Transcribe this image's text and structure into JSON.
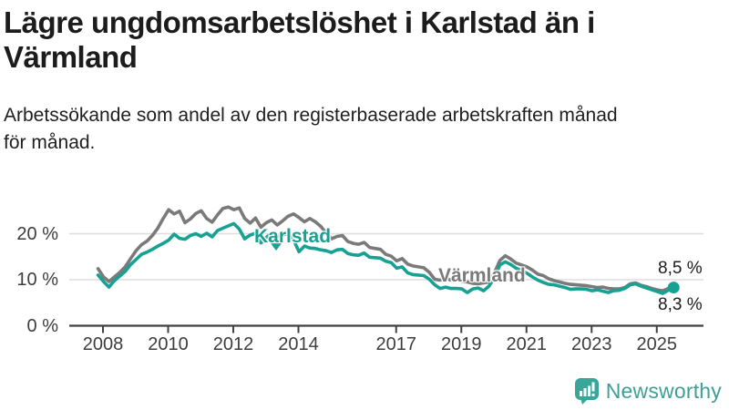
{
  "header": {
    "title": "Lägre ungdomsarbetslöshet i Karlstad än i Värmland",
    "title_lines": [
      "Lägre ungdomsarbetslöshet i Karlstad än i",
      "Värmland"
    ],
    "subtitle": "Arbetssökande som andel av den registerbaserade arbetskraften månad för månad.",
    "subtitle_lines": [
      "Arbetssökande som andel av den registerbaserade arbetskraften månad",
      "för månad."
    ]
  },
  "chart_data": {
    "type": "line",
    "title": "Lägre ungdomsarbetslöshet i Karlstad än i Värmland",
    "subtitle": "Arbetssökande som andel av den registerbaserade arbetskraften månad för månad.",
    "grid": "horizontal",
    "legend_position": "inline-labels",
    "x_start_year": 2008,
    "points_per_year": 6,
    "ylim": [
      0,
      28
    ],
    "x_axis": {
      "tick_labels": [
        "2008",
        "2010",
        "2012",
        "2014",
        "2017",
        "2019",
        "2021",
        "2023",
        "2025"
      ],
      "tick_years": [
        2008,
        2010,
        2012,
        2014,
        2017,
        2019,
        2021,
        2023,
        2025
      ]
    },
    "y_axis": {
      "tick_labels": [
        "0 %",
        "10 %",
        "20 %"
      ],
      "tick_values": [
        0,
        10,
        20
      ],
      "unit": "%"
    },
    "series": [
      {
        "name": "Värmland",
        "color": "#7a7a7a",
        "end_label": "8,5 %",
        "end_value": 8.5,
        "values": [
          12.4,
          10.6,
          9.6,
          10.6,
          11.6,
          12.8,
          14.6,
          16.3,
          17.6,
          18.4,
          19.6,
          21.2,
          23.3,
          25.2,
          24.3,
          24.9,
          22.4,
          23.2,
          24.4,
          25.0,
          23.3,
          22.5,
          24.1,
          25.5,
          25.8,
          25.2,
          25.6,
          23.3,
          22.3,
          23.4,
          21.4,
          22.4,
          23.0,
          21.9,
          22.8,
          23.8,
          24.3,
          23.5,
          22.6,
          23.3,
          22.6,
          21.6,
          20.2,
          18.9,
          19.4,
          19.6,
          18.3,
          17.9,
          17.7,
          18.1,
          17.0,
          16.8,
          16.6,
          15.5,
          15.1,
          14.1,
          14.6,
          13.4,
          13.0,
          12.8,
          12.6,
          11.6,
          10.1,
          9.9,
          10.4,
          9.9,
          10.1,
          9.7,
          9.5,
          9.2,
          9.1,
          9.3,
          9.5,
          11.5,
          14.2,
          15.2,
          14.5,
          13.6,
          13.2,
          12.8,
          12.1,
          11.2,
          10.9,
          10.2,
          9.8,
          9.5,
          9.2,
          9.0,
          8.9,
          8.8,
          8.7,
          8.5,
          8.3,
          8.4,
          8.1,
          8.0,
          8.0,
          8.3,
          9.1,
          9.3,
          8.8,
          8.5,
          8.1,
          7.8,
          7.6,
          8.1,
          8.5
        ]
      },
      {
        "name": "Karlstad",
        "color": "#17a192",
        "end_label": "8,3 %",
        "end_value": 8.3,
        "values": [
          11.0,
          9.6,
          8.4,
          9.8,
          10.8,
          11.8,
          13.3,
          14.4,
          15.5,
          16.0,
          16.6,
          17.3,
          17.9,
          18.6,
          19.9,
          19.0,
          18.8,
          19.6,
          20.0,
          19.4,
          20.1,
          19.3,
          20.7,
          21.2,
          21.7,
          22.2,
          21.0,
          18.9,
          19.7,
          20.1,
          18.0,
          19.2,
          20.1,
          19.3,
          19.7,
          20.1,
          18.7,
          16.1,
          17.3,
          16.9,
          16.8,
          16.5,
          16.3,
          15.9,
          16.5,
          16.6,
          15.7,
          15.4,
          15.3,
          15.8,
          14.9,
          14.8,
          14.7,
          14.0,
          13.7,
          12.5,
          12.8,
          11.5,
          11.1,
          11.0,
          10.9,
          10.1,
          8.9,
          8.1,
          8.4,
          8.1,
          8.1,
          8.0,
          7.2,
          8.0,
          8.2,
          7.6,
          8.6,
          10.5,
          13.2,
          13.9,
          13.3,
          12.5,
          12.0,
          11.4,
          10.6,
          9.9,
          9.4,
          9.0,
          8.9,
          8.6,
          8.3,
          7.9,
          8.0,
          8.0,
          7.9,
          7.6,
          7.8,
          7.5,
          7.2,
          7.6,
          7.7,
          8.1,
          8.9,
          9.1,
          8.6,
          8.2,
          7.8,
          7.4,
          7.0,
          7.7,
          8.3
        ]
      }
    ]
  },
  "colors": {
    "grid": "#dedede",
    "axis": "#404040",
    "tick_text": "#3d3d3d",
    "title_text": "#1c1c1c",
    "varmland_line": "#7a7a7a",
    "karlstad_line": "#17a192",
    "logo_icon": "#38a79a",
    "logo_text": "#3f9f96"
  },
  "footer": {
    "brand": "Newsworthy"
  }
}
